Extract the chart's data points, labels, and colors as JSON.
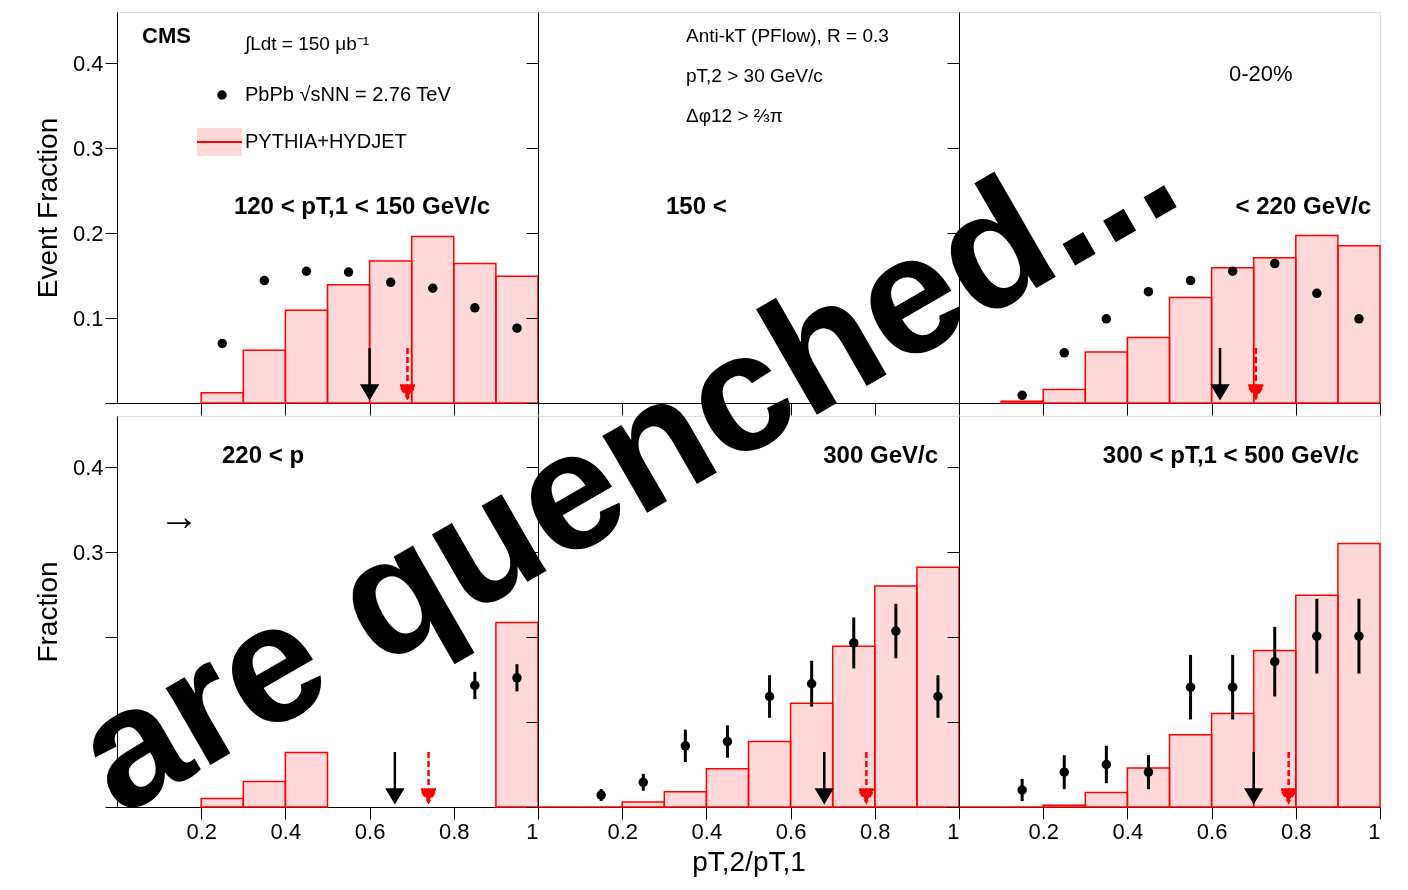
{
  "chart_data": [
    {
      "type": "histogram",
      "ylabel": "Event Fraction",
      "xlim": [
        0,
        1
      ],
      "ylim": [
        0,
        0.46
      ],
      "tick_labels": "y",
      "legend": "top left",
      "grid": false,
      "xticks": [
        0.2,
        0.4,
        0.6,
        0.8,
        1
      ],
      "yticks": [
        {
          "value": 0,
          "label": null
        },
        0.1,
        0.2,
        0.3,
        0.4
      ],
      "annotations": [
        "CMS",
        "∫Ldt = 150 μb⁻¹",
        "120 < pT,1 < 150 GeV/c"
      ],
      "series": [
        {
          "name": "PYTHIA+HYDJET",
          "type": "histogram",
          "color": "#ff0000",
          "bins": [
            0.2,
            0.3,
            0.4,
            0.5,
            0.6,
            0.7,
            0.8,
            0.9,
            1.0
          ],
          "values": [
            0.012,
            0.062,
            0.109,
            0.139,
            0.167,
            0.196,
            0.164,
            0.149
          ]
        },
        {
          "name": "PbPb √sNN = 2.76 TeV",
          "type": "scatter",
          "color": "#000000",
          "marker": "circle",
          "x": [
            0.25,
            0.35,
            0.45,
            0.55,
            0.65,
            0.75,
            0.85,
            0.95
          ],
          "values": [
            0.07,
            0.144,
            0.155,
            0.154,
            0.142,
            0.135,
            0.112,
            0.088
          ]
        }
      ],
      "ref_lines": [
        {
          "axis": "x",
          "value": 0.6,
          "color": "#000000",
          "line_style": "solid"
        },
        {
          "axis": "x",
          "value": 0.69,
          "color": "#ff0000",
          "line_style": "dashed"
        }
      ]
    },
    {
      "type": "histogram",
      "xlim": [
        0,
        1
      ],
      "ylim": [
        0,
        0.46
      ],
      "tick_labels": false,
      "grid": false,
      "xticks": [
        0.2,
        0.4,
        0.6,
        0.8,
        1
      ],
      "yticks": [
        {
          "value": 0,
          "label": null
        },
        0.1,
        0.2,
        0.3,
        0.4
      ],
      "annotations": [
        "Anti-kT (PFlow), R = 0.3",
        "pT,2 > 30 GeV/c",
        "Δφ12 > ⅔π",
        "150 <"
      ]
    },
    {
      "type": "histogram",
      "xlim": [
        0,
        1
      ],
      "ylim": [
        0,
        0.46
      ],
      "tick_labels": false,
      "grid": false,
      "xticks": [
        0.2,
        0.4,
        0.6,
        0.8,
        1
      ],
      "yticks": [
        {
          "value": 0,
          "label": null
        },
        0.1,
        0.2,
        0.3,
        0.4
      ],
      "annotations": [
        "0-20%",
        "< 220 GeV/c"
      ],
      "series": [
        {
          "type": "histogram",
          "color": "#ff0000",
          "bins": [
            0.1,
            0.2,
            0.3,
            0.4,
            0.5,
            0.6,
            0.7,
            0.8,
            0.9,
            1.0
          ],
          "values": [
            0.002,
            0.016,
            0.06,
            0.077,
            0.124,
            0.159,
            0.171,
            0.197,
            0.185
          ]
        },
        {
          "type": "scatter",
          "color": "#000000",
          "marker": "circle",
          "x": [
            0.15,
            0.25,
            0.35,
            0.45,
            0.55,
            0.65,
            0.75,
            0.85,
            0.95
          ],
          "values": [
            0.009,
            0.059,
            0.099,
            0.131,
            0.144,
            0.155,
            0.164,
            0.129,
            0.099
          ]
        }
      ],
      "ref_lines": [
        {
          "axis": "x",
          "value": 0.62,
          "color": "#000000",
          "line_style": "solid"
        },
        {
          "axis": "x",
          "value": 0.705,
          "color": "#ff0000",
          "line_style": "dashed"
        }
      ]
    },
    {
      "type": "histogram",
      "ylabel": "Fraction",
      "xlim": [
        0,
        1
      ],
      "ylim": [
        0,
        0.46
      ],
      "grid": false,
      "xticks": [
        0.2,
        0.4,
        0.6,
        0.8,
        1
      ],
      "yticks": [
        {
          "value": 0,
          "label": null
        },
        {
          "value": 0.1,
          "label": null
        },
        {
          "value": 0.2,
          "label": null
        },
        0.3,
        0.4
      ],
      "annotations": [
        "220 < p",
        "→"
      ],
      "series": [
        {
          "type": "histogram",
          "color": "#ff0000",
          "bins": [
            0.2,
            0.3,
            0.4,
            0.5,
            0.6,
            0.7,
            0.8,
            0.9,
            1.0
          ],
          "values": [
            0.01,
            0.03,
            0.064,
            null,
            null,
            null,
            null,
            0.217
          ]
        },
        {
          "type": "scatter",
          "color": "#000000",
          "marker": "circle",
          "x": [
            0.85,
            0.95
          ],
          "values": [
            0.143,
            0.152
          ],
          "errors": [
            0.016,
            0.016
          ]
        }
      ],
      "ref_lines": [
        {
          "axis": "x",
          "value": 0.66,
          "color": "#000000",
          "line_style": "solid"
        },
        {
          "axis": "x",
          "value": 0.74,
          "color": "#ff0000",
          "line_style": "dashed"
        }
      ]
    },
    {
      "type": "histogram",
      "xlabel": "pT,2/pT,1",
      "xlim": [
        0,
        1
      ],
      "ylim": [
        0,
        0.46
      ],
      "tick_labels": "x",
      "grid": false,
      "xticks": [
        0.2,
        0.4,
        0.6,
        0.8,
        1
      ],
      "yticks": [
        {
          "value": 0,
          "label": null
        },
        0.1,
        0.2,
        0.3,
        0.4
      ],
      "annotations": [
        "300 GeV/c"
      ],
      "series": [
        {
          "type": "histogram",
          "color": "#ff0000",
          "bins": [
            0.0,
            0.1,
            0.2,
            0.3,
            0.4,
            0.5,
            0.6,
            0.7,
            0.8,
            0.9,
            1.0
          ],
          "values": [
            0,
            0,
            0.006,
            0.018,
            0.045,
            0.077,
            0.122,
            0.189,
            0.26,
            0.282
          ]
        },
        {
          "type": "scatter",
          "color": "#000000",
          "marker": "circle",
          "x": [
            0.15,
            0.25,
            0.35,
            0.45,
            0.55,
            0.65,
            0.75,
            0.85,
            0.95
          ],
          "values": [
            0.014,
            0.029,
            0.072,
            0.077,
            0.13,
            0.145,
            0.193,
            0.207,
            0.13
          ],
          "errors": [
            0.007,
            0.01,
            0.019,
            0.019,
            0.025,
            0.027,
            0.03,
            0.032,
            0.025
          ]
        }
      ],
      "ref_lines": [
        {
          "axis": "x",
          "value": 0.68,
          "color": "#000000",
          "line_style": "solid"
        },
        {
          "axis": "x",
          "value": 0.78,
          "color": "#ff0000",
          "line_style": "dashed"
        }
      ]
    },
    {
      "type": "histogram",
      "xlim": [
        0,
        1
      ],
      "ylim": [
        0,
        0.46
      ],
      "tick_labels": "x",
      "grid": false,
      "xticks": [
        0.2,
        0.4,
        0.6,
        0.8,
        1
      ],
      "yticks": [
        {
          "value": 0,
          "label": null
        },
        0.1,
        0.2,
        0.3,
        0.4
      ],
      "annotations": [
        "300 < pT,1 < 500 GeV/c",
        "are quenched..."
      ],
      "series": [
        {
          "type": "histogram",
          "color": "#ff0000",
          "bins": [
            0.0,
            0.1,
            0.2,
            0.3,
            0.4,
            0.5,
            0.6,
            0.7,
            0.8,
            0.9,
            1.0
          ],
          "values": [
            0,
            0,
            0.002,
            0.017,
            0.046,
            0.085,
            0.11,
            0.184,
            0.249,
            0.31
          ]
        },
        {
          "type": "scatter",
          "color": "#000000",
          "marker": "circle",
          "x": [
            0.15,
            0.25,
            0.35,
            0.45,
            0.55,
            0.65,
            0.75,
            0.85,
            0.95
          ],
          "values": [
            0.02,
            0.041,
            0.05,
            0.041,
            0.141,
            0.141,
            0.171,
            0.201,
            0.201
          ],
          "errors": [
            0.013,
            0.02,
            0.022,
            0.02,
            0.038,
            0.038,
            0.041,
            0.044,
            0.044
          ]
        }
      ],
      "ref_lines": [
        {
          "axis": "x",
          "value": 0.7,
          "color": "#000000",
          "line_style": "solid"
        },
        {
          "axis": "x",
          "value": 0.783,
          "color": "#ff0000",
          "line_style": "dashed"
        }
      ]
    }
  ]
}
